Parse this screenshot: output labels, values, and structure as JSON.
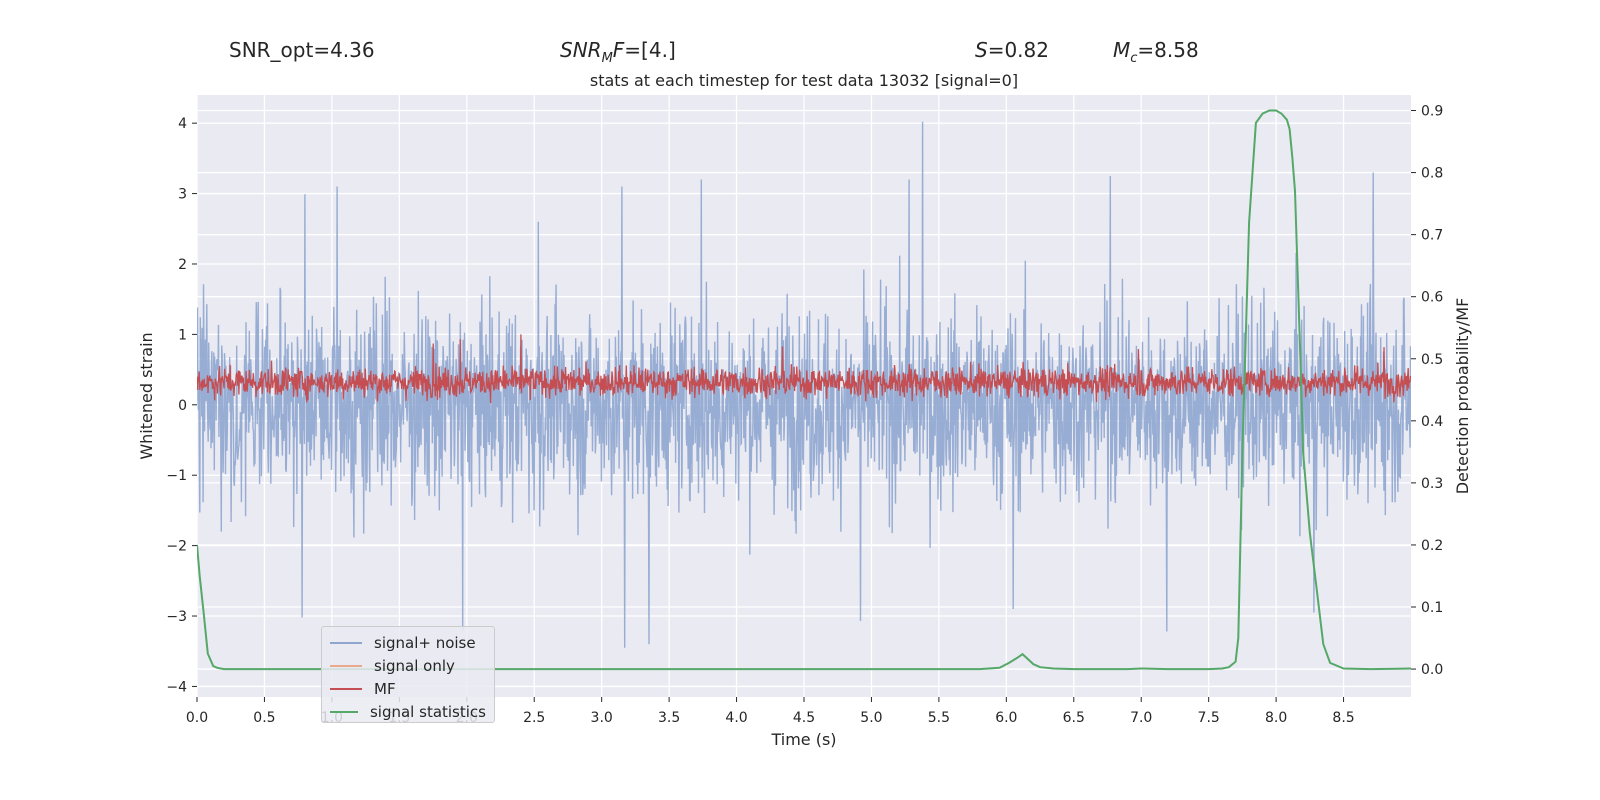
{
  "header": {
    "snr_opt": "SNR_opt=4.36",
    "snr_mf_sym": "SNR",
    "snr_mf_sub": "M",
    "snr_mf_sym2": "F",
    "snr_mf_val": "=[4.]",
    "s_sym": "S",
    "s_val": "=0.82",
    "mc_sym": "M",
    "mc_sub": "c",
    "mc_val": "=8.58"
  },
  "chart_data": {
    "type": "line",
    "title": "stats at each timestep for test data 13032 [signal=0]",
    "xlabel": "Time (s)",
    "ylabel": "Whitened strain",
    "ylabel_right": "Detection probability/MF",
    "xlim": [
      0.0,
      9.0
    ],
    "ylim": [
      -4.15,
      4.4
    ],
    "ylim_right": [
      -0.045,
      0.925
    ],
    "xticks": [
      "0.0",
      "0.5",
      "1.0",
      "1.5",
      "2.0",
      "2.5",
      "3.0",
      "3.5",
      "4.0",
      "4.5",
      "5.0",
      "5.5",
      "6.0",
      "6.5",
      "7.0",
      "7.5",
      "8.0",
      "8.5"
    ],
    "yticks": [
      "−4",
      "−3",
      "−2",
      "−1",
      "0",
      "1",
      "2",
      "3",
      "4"
    ],
    "yticks_right": [
      "0.0",
      "0.1",
      "0.2",
      "0.3",
      "0.4",
      "0.5",
      "0.6",
      "0.7",
      "0.8",
      "0.9"
    ],
    "grid": true,
    "legend_location": "lower-left",
    "series": [
      {
        "name": "signal+ noise",
        "color": "#8fa6cf",
        "axis": "left",
        "description": "dense noisy strain trace sampled over 0–9 s, envelope roughly ±2.3 with spikes",
        "envelope_upper": 2.2,
        "envelope_lower": -2.2,
        "peaks": [
          [
            5.38,
            4.02
          ],
          [
            8.72,
            3.3
          ],
          [
            6.77,
            3.25
          ],
          [
            3.74,
            3.2
          ],
          [
            5.28,
            3.2
          ],
          [
            3.15,
            3.1
          ],
          [
            1.04,
            3.1
          ],
          [
            0.8,
            2.99
          ],
          [
            2.53,
            2.6
          ]
        ],
        "troughs": [
          [
            3.35,
            -3.4
          ],
          [
            3.17,
            -3.45
          ],
          [
            7.19,
            -3.22
          ],
          [
            1.97,
            -3.2
          ],
          [
            6.05,
            -2.9
          ],
          [
            4.92,
            -3.07
          ],
          [
            8.28,
            -2.95
          ],
          [
            0.78,
            -3.02
          ]
        ]
      },
      {
        "name": "signal only",
        "color": "#e8a98f",
        "axis": "left",
        "values": []
      },
      {
        "name": "MF",
        "color": "#c44e52",
        "axis": "left",
        "description": "matched filter output, band between ~0.0 and ~0.65 with occasional spikes up to ~1.0",
        "band_low": 0.0,
        "band_high": 0.65,
        "peaks": [
          [
            2.4,
            1.0
          ],
          [
            1.95,
            0.93
          ],
          [
            1.75,
            0.87
          ],
          [
            4.34,
            0.83
          ],
          [
            6.98,
            0.79
          ],
          [
            8.8,
            0.82
          ]
        ]
      },
      {
        "name": "signal statistics",
        "color": "#55a868",
        "axis": "right",
        "x": [
          0.0,
          0.02,
          0.05,
          0.08,
          0.12,
          0.15,
          0.2,
          0.3,
          0.5,
          1.0,
          2.0,
          3.0,
          4.0,
          5.0,
          5.5,
          5.8,
          5.95,
          6.02,
          6.08,
          6.12,
          6.15,
          6.2,
          6.25,
          6.35,
          6.5,
          6.9,
          7.0,
          7.2,
          7.5,
          7.6,
          7.65,
          7.7,
          7.72,
          7.75,
          7.8,
          7.85,
          7.9,
          7.95,
          8.0,
          8.04,
          8.08,
          8.1,
          8.12,
          8.14,
          8.18,
          8.2,
          8.25,
          8.3,
          8.35,
          8.4,
          8.5,
          8.7,
          9.0
        ],
        "values": [
          0.2,
          0.15,
          0.09,
          0.025,
          0.005,
          0.002,
          0.0,
          0.0,
          0.0,
          0.0,
          0.0,
          0.0,
          0.0,
          0.0,
          0.0,
          0.0,
          0.002,
          0.01,
          0.018,
          0.024,
          0.018,
          0.008,
          0.003,
          0.001,
          0.0,
          0.0,
          0.001,
          0.0,
          0.0,
          0.001,
          0.003,
          0.012,
          0.05,
          0.35,
          0.72,
          0.88,
          0.895,
          0.9,
          0.9,
          0.895,
          0.885,
          0.87,
          0.825,
          0.77,
          0.5,
          0.35,
          0.22,
          0.13,
          0.04,
          0.01,
          0.001,
          0.0,
          0.001
        ]
      }
    ]
  }
}
